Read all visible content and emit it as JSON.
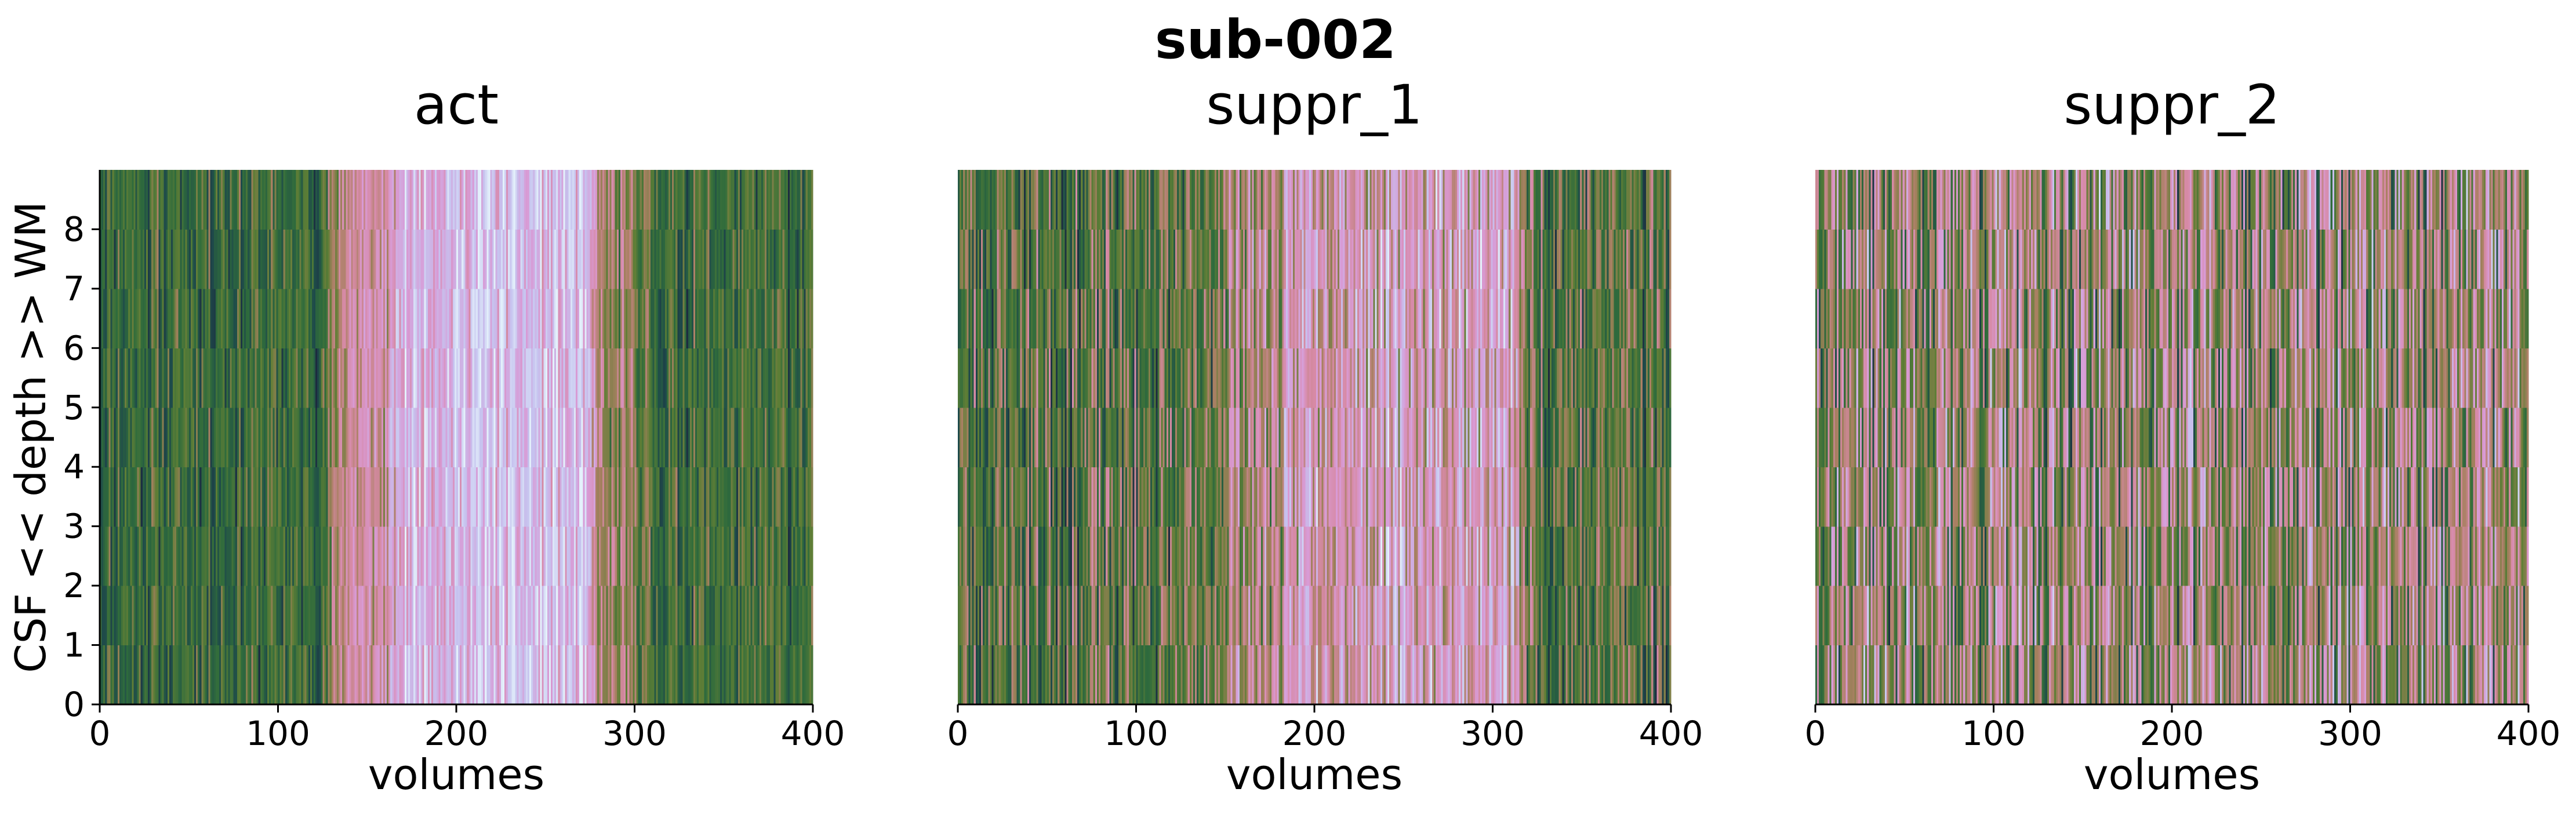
{
  "figure": {
    "suptitle": "sub-002"
  },
  "chart_data": [
    {
      "type": "heatmap",
      "title": "act",
      "xlabel": "volumes",
      "ylabel": "CSF << depth >> WM",
      "xlim": [
        0,
        400
      ],
      "ylim": [
        0,
        9
      ],
      "xticks": [
        "0",
        "100",
        "200",
        "300",
        "400"
      ],
      "yticks": [
        "0",
        "1",
        "2",
        "3",
        "4",
        "5",
        "6",
        "7",
        "8"
      ],
      "show_ylabel": true,
      "show_yticks": true,
      "rows": 9,
      "columns": 400,
      "colormap": [
        "#1b1b3a",
        "#1e4a4a",
        "#2f6b3c",
        "#5f7e36",
        "#a98062",
        "#d78aa6",
        "#d89bd6",
        "#c6c3ef",
        "#e4f1fb"
      ],
      "profile": {
        "regions": [
          {
            "start": 0,
            "end": 125,
            "level": 0.28
          },
          {
            "start": 125,
            "end": 160,
            "level": 0.62
          },
          {
            "start": 160,
            "end": 270,
            "level": 0.84
          },
          {
            "start": 270,
            "end": 300,
            "level": 0.45
          },
          {
            "start": 300,
            "end": 400,
            "level": 0.28
          }
        ],
        "noise": 0.16,
        "seed": 11
      }
    },
    {
      "type": "heatmap",
      "title": "suppr_1",
      "xlabel": "volumes",
      "ylabel": "",
      "xlim": [
        0,
        400
      ],
      "ylim": [
        0,
        9
      ],
      "xticks": [
        "0",
        "100",
        "200",
        "300",
        "400"
      ],
      "yticks": [],
      "show_ylabel": false,
      "show_yticks": false,
      "rows": 9,
      "columns": 400,
      "colormap": [
        "#1b1b3a",
        "#1e4a4a",
        "#2f6b3c",
        "#5f7e36",
        "#a98062",
        "#d78aa6",
        "#d89bd6",
        "#c6c3ef",
        "#e4f1fb"
      ],
      "profile": {
        "regions": [
          {
            "start": 0,
            "end": 140,
            "level": 0.35
          },
          {
            "start": 140,
            "end": 180,
            "level": 0.55
          },
          {
            "start": 180,
            "end": 310,
            "level": 0.7
          },
          {
            "start": 310,
            "end": 400,
            "level": 0.35
          }
        ],
        "noise": 0.22,
        "seed": 23
      }
    },
    {
      "type": "heatmap",
      "title": "suppr_2",
      "xlabel": "volumes",
      "ylabel": "",
      "xlim": [
        0,
        400
      ],
      "ylim": [
        0,
        9
      ],
      "xticks": [
        "0",
        "100",
        "200",
        "300",
        "400"
      ],
      "yticks": [],
      "show_ylabel": false,
      "show_yticks": false,
      "rows": 9,
      "columns": 400,
      "colormap": [
        "#1b1b3a",
        "#1e4a4a",
        "#2f6b3c",
        "#5f7e36",
        "#a98062",
        "#d78aa6",
        "#d89bd6",
        "#c6c3ef",
        "#e4f1fb"
      ],
      "profile": {
        "regions": [
          {
            "start": 0,
            "end": 400,
            "level": 0.5
          }
        ],
        "noise": 0.3,
        "seed": 37
      }
    }
  ]
}
